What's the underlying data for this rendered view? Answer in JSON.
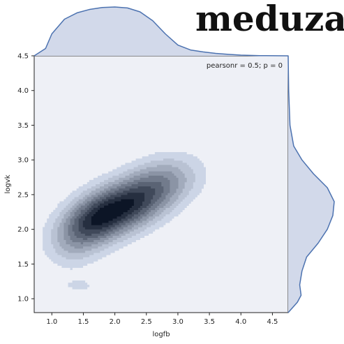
{
  "logo": {
    "text": "meduza"
  },
  "chart_data": {
    "type": "kde_jointplot",
    "xlabel": "logfb",
    "ylabel": "logvk",
    "xlim": [
      0.72,
      4.75
    ],
    "ylim": [
      0.8,
      4.5
    ],
    "x_ticks": [
      "1.0",
      "1.5",
      "2.0",
      "2.5",
      "3.0",
      "3.5",
      "4.0",
      "4.5"
    ],
    "y_ticks": [
      "1.0",
      "1.5",
      "2.0",
      "2.5",
      "3.0",
      "3.5",
      "4.0",
      "4.5"
    ],
    "annotation": "pearsonr = 0.5; p = 0",
    "pearson_r": 0.5,
    "p_value": 0,
    "density_peak": {
      "x": 2.15,
      "y": 2.35
    },
    "contour_levels": 9,
    "marginal_x": {
      "x": [
        0.72,
        0.9,
        1.0,
        1.2,
        1.4,
        1.6,
        1.8,
        2.0,
        2.2,
        2.4,
        2.6,
        2.8,
        3.0,
        3.2,
        3.4,
        3.6,
        3.8,
        4.0,
        4.3,
        4.75
      ],
      "density": [
        0.0,
        0.15,
        0.45,
        0.75,
        0.88,
        0.95,
        0.99,
        1.0,
        0.98,
        0.9,
        0.72,
        0.45,
        0.22,
        0.12,
        0.08,
        0.05,
        0.03,
        0.015,
        0.005,
        0.0
      ]
    },
    "marginal_y": {
      "y": [
        0.8,
        0.95,
        1.05,
        1.2,
        1.4,
        1.6,
        1.8,
        2.0,
        2.2,
        2.4,
        2.6,
        2.8,
        3.0,
        3.2,
        3.5,
        4.0,
        4.5
      ],
      "density": [
        0.0,
        0.2,
        0.28,
        0.25,
        0.3,
        0.4,
        0.65,
        0.85,
        0.97,
        1.0,
        0.85,
        0.55,
        0.3,
        0.12,
        0.04,
        0.01,
        0.0
      ]
    },
    "colors": {
      "fill_light": "#ccd5e6",
      "fill_dark": "#0c1526",
      "line": "#4c72b0",
      "plot_bg": "#eef0f6",
      "marginal_fill": "#d2d9ea"
    }
  }
}
